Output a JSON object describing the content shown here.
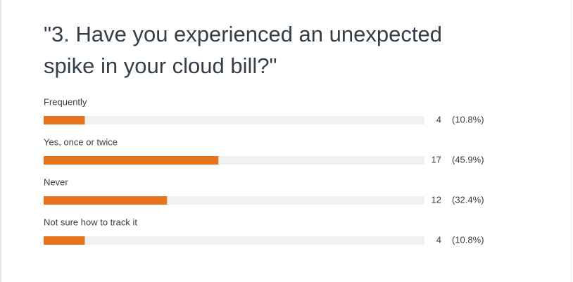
{
  "chart_data": {
    "type": "bar",
    "orientation": "horizontal",
    "title": "\"3. Have you experienced an unexpected spike in your cloud bill?\"",
    "categories": [
      "Frequently",
      "Yes, once or twice",
      "Never",
      "Not sure how to track it"
    ],
    "counts": [
      4,
      17,
      12,
      4
    ],
    "values": [
      10.8,
      45.9,
      32.4,
      10.8
    ],
    "value_labels": [
      "(10.8%)",
      "(45.9%)",
      "(32.4%)",
      "(10.8%)"
    ],
    "color": "#e8731f",
    "xlim": [
      0,
      100
    ]
  }
}
